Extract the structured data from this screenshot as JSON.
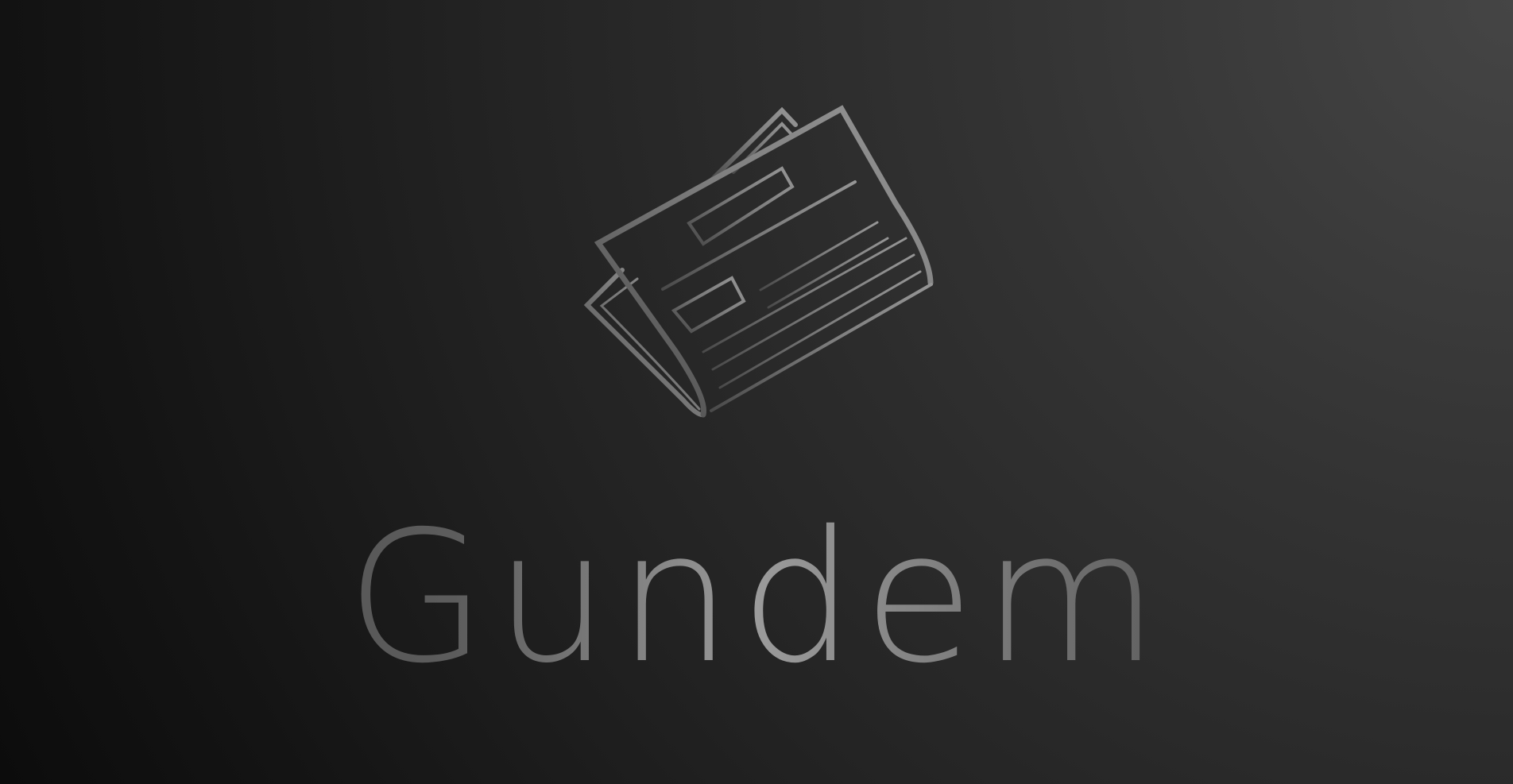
{
  "app": {
    "title": "Gundem",
    "logo_icon": "newspaper-icon"
  },
  "colors": {
    "background_light": "#454545",
    "background_dark": "#0c0c0c",
    "logo_stroke": "#8c8c8c",
    "title_highlight": "#9b9b9b"
  }
}
